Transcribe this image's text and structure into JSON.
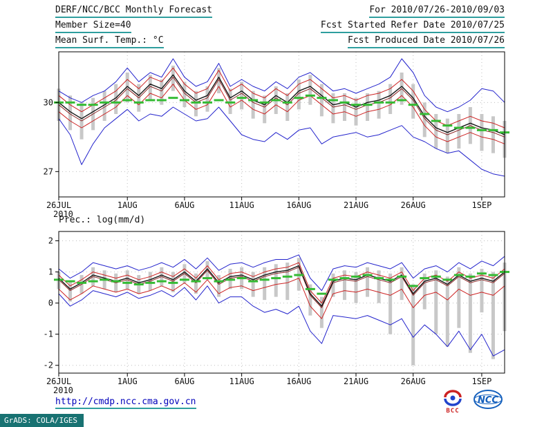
{
  "header": {
    "left": [
      "DERF/NCC/BCC Monthly Forecast",
      "Member Size=40",
      "Mean Surf. Temp.: °C"
    ],
    "right": [
      "For 2010/07/26-2010/09/03",
      "Fcst Started Refer Date 2010/07/25",
      "Fcst Produced Date 2010/07/26"
    ]
  },
  "footer": {
    "link": "http://cmdp.ncc.cma.gov.cn",
    "grads_credit": "GrADS: COLA/IGES"
  },
  "logos": {
    "bcc": "BCC",
    "ncc": "NCC"
  },
  "colors": {
    "rule_teal": "#2e9e9e",
    "link_blue": "#0000bb",
    "bar_gray": "#c8c8c8",
    "line_blue": "#2222cc",
    "line_red": "#cc2222",
    "line_black": "#151515",
    "line_maroon": "#8b2222",
    "line_green": "#33bb33"
  },
  "chart_data": [
    {
      "id": "temp-panel",
      "type": "line",
      "title": "Mean Surf. Temp.: °C",
      "show_title": false,
      "n_points": 40,
      "x_labels": [
        "26JUL",
        "1AUG",
        "6AUG",
        "11AUG",
        "16AUG",
        "21AUG",
        "26AUG",
        "1SEP"
      ],
      "x_tick_indices": [
        0,
        6,
        11,
        16,
        21,
        26,
        31,
        37
      ],
      "x_sub_label": "2010",
      "ylim": [
        25.9,
        32.2
      ],
      "yticks": [
        27,
        30
      ],
      "bars": {
        "name": "ensemble-spread",
        "color": "#c8c8c8",
        "high": [
          30.6,
          30.3,
          30.0,
          30.2,
          30.5,
          30.8,
          31.3,
          30.8,
          31.2,
          31.0,
          31.6,
          30.9,
          30.5,
          30.7,
          31.5,
          30.6,
          30.9,
          30.5,
          30.3,
          30.7,
          30.4,
          31.0,
          31.2,
          30.8,
          30.4,
          30.4,
          30.2,
          30.4,
          30.5,
          30.8,
          31.3,
          30.8,
          30.0,
          29.5,
          29.3,
          29.5,
          29.8,
          29.5,
          29.4,
          29.2
        ],
        "low": [
          29.2,
          28.8,
          28.4,
          28.8,
          29.2,
          29.5,
          30.0,
          29.6,
          30.1,
          29.9,
          30.5,
          29.8,
          29.4,
          29.6,
          30.4,
          29.5,
          29.7,
          29.3,
          29.1,
          29.5,
          29.2,
          29.7,
          29.9,
          29.4,
          29.1,
          29.2,
          29.0,
          29.2,
          29.3,
          29.5,
          29.9,
          29.3,
          28.5,
          28.0,
          27.8,
          28.0,
          28.2,
          27.9,
          27.8,
          27.6
        ]
      },
      "series": [
        {
          "name": "ens-max",
          "color": "#2222cc",
          "style": "line",
          "width": 1,
          "values": [
            30.5,
            30.2,
            30.0,
            30.3,
            30.5,
            30.9,
            31.5,
            30.9,
            31.3,
            31.1,
            31.9,
            31.1,
            30.7,
            30.9,
            31.7,
            30.7,
            31.0,
            30.7,
            30.5,
            30.9,
            30.6,
            31.1,
            31.3,
            30.9,
            30.5,
            30.6,
            30.4,
            30.6,
            30.8,
            31.1,
            31.9,
            31.3,
            30.3,
            29.8,
            29.6,
            29.8,
            30.1,
            30.6,
            30.5,
            30.0
          ]
        },
        {
          "name": "ens-min",
          "color": "#2222cc",
          "style": "line",
          "width": 1,
          "values": [
            29.3,
            28.6,
            27.3,
            28.2,
            28.9,
            29.3,
            29.7,
            29.2,
            29.5,
            29.4,
            29.8,
            29.5,
            29.2,
            29.3,
            29.8,
            29.2,
            28.6,
            28.4,
            28.3,
            28.7,
            28.4,
            28.8,
            28.9,
            28.2,
            28.5,
            28.6,
            28.7,
            28.5,
            28.6,
            28.8,
            29.0,
            28.5,
            28.3,
            28.0,
            27.8,
            27.9,
            27.5,
            27.1,
            26.9,
            26.8
          ]
        },
        {
          "name": "upper-quartile",
          "color": "#cc2222",
          "style": "line",
          "width": 1,
          "values": [
            30.3,
            29.9,
            29.6,
            29.9,
            30.2,
            30.5,
            31.0,
            30.6,
            31.1,
            30.9,
            31.5,
            30.8,
            30.4,
            30.6,
            31.4,
            30.5,
            30.8,
            30.4,
            30.2,
            30.6,
            30.3,
            30.8,
            31.0,
            30.6,
            30.2,
            30.3,
            30.1,
            30.3,
            30.4,
            30.6,
            31.0,
            30.5,
            29.7,
            29.2,
            29.0,
            29.2,
            29.4,
            29.2,
            29.1,
            28.9
          ]
        },
        {
          "name": "lower-quartile",
          "color": "#cc2222",
          "style": "line",
          "width": 1,
          "values": [
            29.6,
            29.2,
            28.9,
            29.2,
            29.5,
            29.8,
            30.3,
            29.9,
            30.4,
            30.2,
            30.8,
            30.1,
            29.7,
            29.9,
            30.7,
            29.8,
            30.1,
            29.7,
            29.5,
            29.9,
            29.6,
            30.1,
            30.3,
            29.9,
            29.5,
            29.6,
            29.4,
            29.6,
            29.7,
            29.9,
            30.3,
            29.8,
            29.0,
            28.5,
            28.3,
            28.5,
            28.7,
            28.5,
            28.4,
            28.2
          ]
        },
        {
          "name": "ens-median",
          "color": "#8b2222",
          "style": "line",
          "width": 1,
          "values": [
            29.9,
            29.5,
            29.2,
            29.5,
            29.8,
            30.1,
            30.6,
            30.2,
            30.7,
            30.5,
            31.1,
            30.4,
            30.0,
            30.2,
            31.0,
            30.1,
            30.4,
            30.0,
            29.8,
            30.2,
            29.9,
            30.4,
            30.6,
            30.2,
            29.8,
            29.9,
            29.7,
            29.9,
            30.0,
            30.2,
            30.6,
            30.1,
            29.3,
            28.8,
            28.6,
            28.8,
            29.0,
            28.8,
            28.7,
            28.5
          ]
        },
        {
          "name": "ens-mean",
          "color": "#151515",
          "style": "line",
          "width": 1.4,
          "values": [
            30.0,
            29.6,
            29.3,
            29.6,
            29.9,
            30.2,
            30.7,
            30.3,
            30.8,
            30.6,
            31.2,
            30.5,
            30.1,
            30.3,
            31.1,
            30.2,
            30.5,
            30.1,
            29.9,
            30.3,
            30.0,
            30.5,
            30.7,
            30.3,
            29.9,
            30.0,
            29.8,
            30.0,
            30.1,
            30.3,
            30.7,
            30.2,
            29.4,
            28.9,
            28.7,
            28.9,
            29.1,
            28.9,
            28.8,
            28.6
          ]
        },
        {
          "name": "climatology",
          "color": "#33bb33",
          "style": "dash-h",
          "width": 3,
          "values": [
            30.0,
            30.0,
            29.9,
            29.9,
            30.0,
            30.0,
            30.1,
            30.0,
            30.1,
            30.1,
            30.2,
            30.1,
            30.0,
            30.0,
            30.1,
            30.0,
            30.2,
            30.1,
            30.0,
            30.1,
            30.0,
            30.2,
            30.3,
            30.2,
            30.1,
            30.0,
            29.9,
            29.9,
            30.0,
            30.0,
            30.1,
            29.9,
            29.5,
            29.2,
            29.0,
            28.9,
            28.9,
            28.8,
            28.8,
            28.7
          ]
        }
      ]
    },
    {
      "id": "prec-panel",
      "type": "line",
      "title": "Prec.: log(mm/d)",
      "show_title": true,
      "n_points": 40,
      "x_labels": [
        "26JUL",
        "1AUG",
        "6AUG",
        "11AUG",
        "16AUG",
        "21AUG",
        "26AUG",
        "1SEP"
      ],
      "x_tick_indices": [
        0,
        6,
        11,
        16,
        21,
        26,
        31,
        37
      ],
      "x_sub_label": "2010",
      "ylim": [
        -2.25,
        2.3
      ],
      "yticks": [
        2,
        1,
        0,
        -1,
        -2
      ],
      "bars": {
        "name": "ensemble-spread",
        "color": "#c8c8c8",
        "high": [
          1.0,
          0.7,
          0.9,
          1.15,
          1.05,
          0.95,
          1.05,
          0.9,
          1.0,
          1.15,
          1.0,
          1.25,
          0.95,
          1.35,
          0.9,
          1.1,
          1.15,
          1.0,
          1.15,
          1.25,
          1.3,
          1.45,
          0.6,
          0.2,
          0.95,
          1.05,
          1.0,
          1.15,
          1.05,
          0.95,
          1.15,
          0.6,
          0.95,
          1.05,
          0.85,
          1.15,
          0.95,
          1.1,
          1.0,
          1.3
        ],
        "low": [
          0.45,
          0.05,
          0.3,
          0.55,
          0.45,
          0.35,
          0.45,
          0.3,
          0.4,
          0.55,
          0.35,
          0.65,
          0.3,
          0.75,
          0.2,
          0.45,
          0.45,
          0.2,
          0.1,
          0.2,
          0.1,
          0.4,
          -0.4,
          -0.8,
          0.2,
          0.1,
          0.0,
          0.2,
          0.0,
          -1.0,
          0.1,
          -2.0,
          -0.2,
          -1.0,
          -1.4,
          -0.8,
          -1.6,
          -0.3,
          -1.8,
          -0.9
        ]
      },
      "series": [
        {
          "name": "ens-max",
          "color": "#2222cc",
          "style": "line",
          "width": 1,
          "values": [
            1.1,
            0.8,
            1.0,
            1.3,
            1.2,
            1.1,
            1.2,
            1.05,
            1.15,
            1.3,
            1.15,
            1.4,
            1.1,
            1.45,
            1.05,
            1.25,
            1.3,
            1.15,
            1.3,
            1.4,
            1.4,
            1.55,
            0.8,
            0.4,
            1.1,
            1.2,
            1.15,
            1.3,
            1.2,
            1.1,
            1.3,
            0.8,
            1.1,
            1.2,
            1.0,
            1.3,
            1.1,
            1.35,
            1.2,
            1.5
          ]
        },
        {
          "name": "ens-min",
          "color": "#2222cc",
          "style": "line",
          "width": 1,
          "values": [
            0.3,
            -0.1,
            0.1,
            0.4,
            0.3,
            0.2,
            0.35,
            0.15,
            0.25,
            0.4,
            0.2,
            0.5,
            0.1,
            0.55,
            0.0,
            0.2,
            0.2,
            -0.1,
            -0.3,
            -0.2,
            -0.35,
            -0.1,
            -0.9,
            -1.3,
            -0.4,
            -0.45,
            -0.5,
            -0.4,
            -0.55,
            -0.7,
            -0.5,
            -1.1,
            -0.7,
            -1.0,
            -1.4,
            -0.9,
            -1.5,
            -1.0,
            -1.7,
            -1.5
          ]
        },
        {
          "name": "upper-quartile",
          "color": "#cc2222",
          "style": "line",
          "width": 1,
          "values": [
            0.9,
            0.55,
            0.75,
            1.0,
            0.9,
            0.8,
            0.9,
            0.75,
            0.85,
            1.0,
            0.85,
            1.1,
            0.8,
            1.2,
            0.75,
            0.95,
            1.0,
            0.85,
            1.0,
            1.1,
            1.15,
            1.3,
            0.4,
            0.0,
            0.8,
            0.9,
            0.85,
            1.0,
            0.9,
            0.8,
            1.0,
            0.4,
            0.8,
            0.9,
            0.7,
            1.0,
            0.8,
            0.9,
            0.8,
            1.1
          ]
        },
        {
          "name": "lower-quartile",
          "color": "#cc2222",
          "style": "line",
          "width": 1,
          "values": [
            0.45,
            0.1,
            0.3,
            0.55,
            0.45,
            0.35,
            0.45,
            0.3,
            0.4,
            0.55,
            0.4,
            0.65,
            0.35,
            0.75,
            0.3,
            0.5,
            0.55,
            0.4,
            0.5,
            0.6,
            0.65,
            0.8,
            -0.1,
            -0.5,
            0.3,
            0.4,
            0.35,
            0.45,
            0.35,
            0.25,
            0.45,
            -0.15,
            0.25,
            0.35,
            0.1,
            0.45,
            0.25,
            0.35,
            0.25,
            0.55
          ]
        },
        {
          "name": "ens-median",
          "color": "#8b2222",
          "style": "line",
          "width": 1,
          "values": [
            0.75,
            0.4,
            0.6,
            0.85,
            0.75,
            0.65,
            0.75,
            0.6,
            0.7,
            0.85,
            0.7,
            0.95,
            0.65,
            1.05,
            0.6,
            0.8,
            0.85,
            0.7,
            0.85,
            0.95,
            1.0,
            1.15,
            0.25,
            -0.15,
            0.65,
            0.75,
            0.7,
            0.85,
            0.75,
            0.65,
            0.85,
            0.25,
            0.65,
            0.75,
            0.55,
            0.85,
            0.65,
            0.75,
            0.65,
            0.95
          ]
        },
        {
          "name": "ens-mean",
          "color": "#151515",
          "style": "line",
          "width": 1.4,
          "values": [
            0.8,
            0.45,
            0.65,
            0.9,
            0.8,
            0.7,
            0.8,
            0.65,
            0.75,
            0.9,
            0.75,
            1.0,
            0.7,
            1.1,
            0.65,
            0.85,
            0.9,
            0.75,
            0.9,
            1.0,
            1.05,
            1.2,
            0.3,
            -0.1,
            0.7,
            0.8,
            0.75,
            0.9,
            0.8,
            0.7,
            0.9,
            0.3,
            0.7,
            0.8,
            0.6,
            0.9,
            0.7,
            0.8,
            0.7,
            1.0
          ]
        },
        {
          "name": "climatology",
          "color": "#33bb33",
          "style": "dash-h",
          "width": 3,
          "values": [
            0.75,
            0.7,
            0.65,
            0.7,
            0.75,
            0.7,
            0.65,
            0.6,
            0.65,
            0.7,
            0.65,
            0.75,
            0.7,
            0.8,
            0.7,
            0.75,
            0.8,
            0.7,
            0.75,
            0.8,
            0.85,
            0.9,
            0.45,
            0.3,
            0.75,
            0.8,
            0.85,
            0.9,
            0.8,
            0.75,
            0.85,
            0.55,
            0.8,
            0.85,
            0.75,
            0.9,
            0.85,
            0.95,
            0.9,
            1.0
          ]
        }
      ]
    }
  ]
}
